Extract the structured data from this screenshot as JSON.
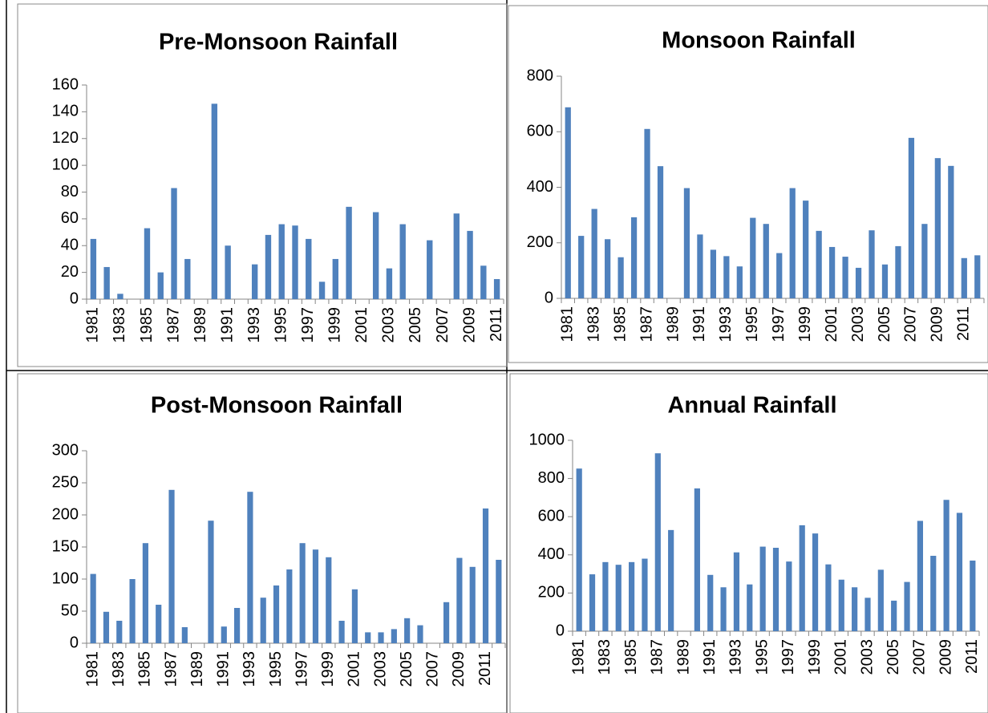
{
  "chart_data": [
    {
      "type": "bar",
      "title": "Pre-Monsoon Rainfall",
      "color": "#4f81bd",
      "categories": [
        "1981",
        null,
        "1983",
        null,
        "1985",
        null,
        "1987",
        null,
        "1989",
        null,
        "1991",
        null,
        "1993",
        null,
        "1995",
        null,
        "1997",
        null,
        "1999",
        null,
        "2001",
        null,
        "2003",
        null,
        "2005",
        null,
        "2007",
        null,
        "2009",
        null,
        "2011"
      ],
      "values": [
        45,
        24,
        4,
        0,
        53,
        20,
        83,
        30,
        0,
        146,
        40,
        0,
        26,
        48,
        56,
        55,
        45,
        13,
        30,
        69,
        0,
        65,
        23,
        56,
        0,
        44,
        0,
        64,
        51,
        25,
        15
      ],
      "ylim": [
        0,
        160
      ],
      "yticks": [
        0,
        20,
        40,
        60,
        80,
        100,
        120,
        140,
        160
      ],
      "grid": false
    },
    {
      "type": "bar",
      "title": "Monsoon Rainfall",
      "color": "#4f81bd",
      "categories": [
        "1981",
        null,
        "1983",
        null,
        "1985",
        null,
        "1987",
        null,
        "1989",
        null,
        "1991",
        null,
        "1993",
        null,
        "1995",
        null,
        "1997",
        null,
        "1999",
        null,
        "2001",
        null,
        "2003",
        null,
        "2005",
        null,
        "2007",
        null,
        "2009",
        null,
        "2011",
        null
      ],
      "values": [
        688,
        225,
        322,
        213,
        148,
        292,
        610,
        476,
        0,
        397,
        230,
        175,
        152,
        115,
        290,
        268,
        163,
        397,
        352,
        243,
        185,
        150,
        110,
        245,
        122,
        188,
        578,
        268,
        505,
        477,
        145,
        155
      ],
      "ylim": [
        0,
        800
      ],
      "yticks": [
        0,
        200,
        400,
        600,
        800
      ],
      "grid": false
    },
    {
      "type": "bar",
      "title": "Post-Monsoon Rainfall",
      "color": "#4f81bd",
      "categories": [
        "1981",
        null,
        "1983",
        null,
        "1985",
        null,
        "1987",
        null,
        "1989",
        null,
        "1991",
        null,
        "1993",
        null,
        "1995",
        null,
        "1997",
        null,
        "1999",
        null,
        "2001",
        null,
        "2003",
        null,
        "2005",
        null,
        "2007",
        null,
        "2009",
        null,
        "2011",
        null
      ],
      "values": [
        108,
        49,
        35,
        100,
        156,
        60,
        239,
        25,
        0,
        191,
        26,
        55,
        236,
        71,
        90,
        115,
        156,
        146,
        134,
        35,
        84,
        17,
        17,
        22,
        39,
        28,
        0,
        64,
        133,
        119,
        210,
        130
      ],
      "ylim": [
        0,
        300
      ],
      "yticks": [
        0,
        50,
        100,
        150,
        200,
        250,
        300
      ],
      "grid": false
    },
    {
      "type": "bar",
      "title": "Annual Rainfall",
      "color": "#4f81bd",
      "categories": [
        "1981",
        null,
        "1983",
        null,
        "1985",
        null,
        "1987",
        null,
        "1989",
        null,
        "1991",
        null,
        "1993",
        null,
        "1995",
        null,
        "1997",
        null,
        "1999",
        null,
        "2001",
        null,
        "2003",
        null,
        "2005",
        null,
        "2007",
        null,
        "2009",
        null,
        "2011"
      ],
      "values": [
        852,
        298,
        362,
        348,
        362,
        380,
        932,
        530,
        0,
        748,
        295,
        230,
        413,
        245,
        443,
        437,
        365,
        555,
        512,
        350,
        270,
        230,
        175,
        322,
        160,
        258,
        578,
        395,
        688,
        620,
        370
      ],
      "ylim": [
        0,
        1000
      ],
      "yticks": [
        0,
        200,
        400,
        600,
        800,
        1000
      ],
      "grid": false
    }
  ]
}
